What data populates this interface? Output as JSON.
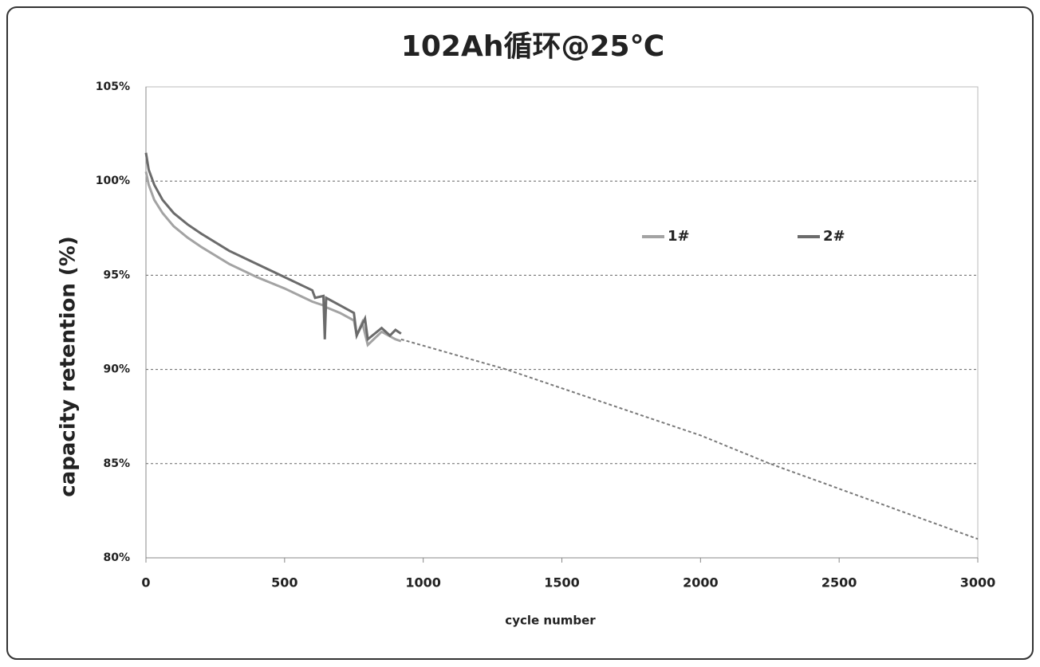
{
  "chart_data": {
    "type": "line",
    "title": "102Ah循环@25℃",
    "x_label": "cycle number",
    "y_label": "capacity retention (%)",
    "xlim": [
      0,
      3000
    ],
    "xticks": [
      0,
      500,
      1000,
      1500,
      2000,
      2500,
      3000
    ],
    "ylim": [
      80,
      105
    ],
    "yticks": [
      {
        "value": 80,
        "label": "80%"
      },
      {
        "value": 85,
        "label": "85%"
      },
      {
        "value": 90,
        "label": "90%"
      },
      {
        "value": 95,
        "label": "95%"
      },
      {
        "value": 100,
        "label": "100%"
      },
      {
        "value": 105,
        "label": "105%"
      }
    ],
    "grid": true,
    "legend": "right",
    "series": [
      {
        "name": "1#",
        "color": "#a3a3a3",
        "x": [
          0,
          10,
          30,
          60,
          100,
          150,
          200,
          300,
          400,
          500,
          600,
          620,
          640,
          650,
          700,
          750,
          760,
          780,
          800,
          850,
          900,
          920
        ],
        "values": [
          100.5,
          99.8,
          99.0,
          98.3,
          97.6,
          97.0,
          96.5,
          95.6,
          94.9,
          94.3,
          93.6,
          93.5,
          93.4,
          93.3,
          93.0,
          92.6,
          91.8,
          92.5,
          91.3,
          92.0,
          91.6,
          91.5
        ]
      },
      {
        "name": "2#",
        "color": "#6b6b6b",
        "x": [
          0,
          10,
          30,
          60,
          100,
          150,
          200,
          300,
          400,
          500,
          600,
          610,
          640,
          645,
          650,
          700,
          750,
          760,
          790,
          800,
          850,
          880,
          900,
          920
        ],
        "values": [
          101.5,
          100.6,
          99.8,
          99.0,
          98.3,
          97.7,
          97.2,
          96.3,
          95.6,
          94.9,
          94.2,
          93.8,
          93.9,
          91.6,
          93.8,
          93.4,
          93.0,
          91.8,
          92.7,
          91.6,
          92.2,
          91.8,
          92.1,
          91.9
        ]
      }
    ],
    "trend": {
      "color": "#7a7a7a",
      "dashed": true,
      "x": [
        920,
        1300,
        2000,
        2250,
        3000
      ],
      "values": [
        91.6,
        90.0,
        86.5,
        85.0,
        81.0
      ]
    }
  }
}
